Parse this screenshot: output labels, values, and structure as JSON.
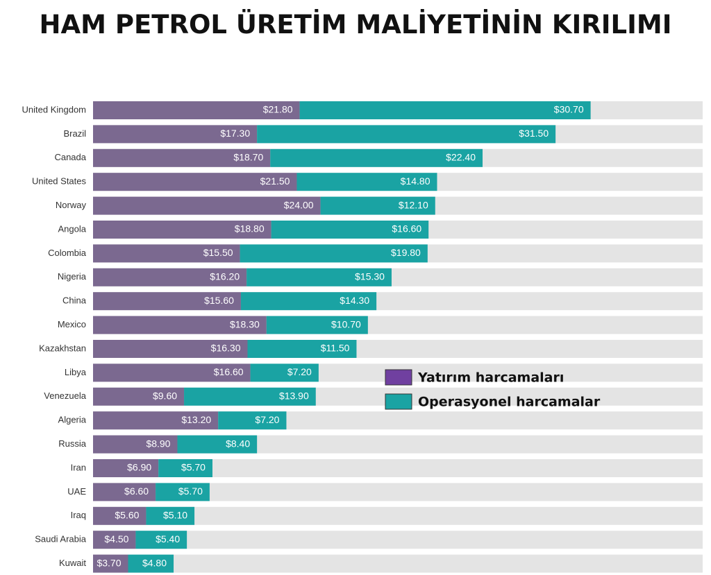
{
  "chart_data": {
    "type": "bar",
    "orientation": "horizontal",
    "stacked": true,
    "title": "HAM PETROL ÜRETİM MALİYETİNİN KIRILIMI",
    "categories": [
      "United Kingdom",
      "Brazil",
      "Canada",
      "United States",
      "Norway",
      "Angola",
      "Colombia",
      "Nigeria",
      "China",
      "Mexico",
      "Kazakhstan",
      "Libya",
      "Venezuela",
      "Algeria",
      "Russia",
      "Iran",
      "UAE",
      "Iraq",
      "Saudi Arabia",
      "Kuwait"
    ],
    "series": [
      {
        "name": "Yatırım harcamaları",
        "color": "#7b6990",
        "values": [
          21.8,
          17.3,
          18.7,
          21.5,
          24.0,
          18.8,
          15.5,
          16.2,
          15.6,
          18.3,
          16.3,
          16.6,
          9.6,
          13.2,
          8.9,
          6.9,
          6.6,
          5.6,
          4.5,
          3.7
        ],
        "labels": [
          "$21.80",
          "$17.30",
          "$18.70",
          "$21.50",
          "$24.00",
          "$18.80",
          "$15.50",
          "$16.20",
          "$15.60",
          "$18.30",
          "$16.30",
          "$16.60",
          "$9.60",
          "$13.20",
          "$8.90",
          "$6.90",
          "$6.60",
          "$5.60",
          "$4.50",
          "$3.70"
        ]
      },
      {
        "name": "Operasyonel harcamalar",
        "color": "#1aa3a3",
        "values": [
          30.7,
          31.5,
          22.4,
          14.8,
          12.1,
          16.6,
          19.8,
          15.3,
          14.3,
          10.7,
          11.5,
          7.2,
          13.9,
          7.2,
          8.4,
          5.7,
          5.7,
          5.1,
          5.4,
          4.8
        ],
        "labels": [
          "$30.70",
          "$31.50",
          "$22.40",
          "$14.80",
          "$12.10",
          "$16.60",
          "$19.80",
          "$15.30",
          "$14.30",
          "$10.70",
          "$11.50",
          "$7.20",
          "$13.90",
          "$7.20",
          "$8.40",
          "$5.70",
          "$5.70",
          "$5.10",
          "$5.40",
          "$4.80"
        ]
      }
    ],
    "xlim": [
      0,
      64
    ],
    "grid": false,
    "legend_position": "right",
    "background_track_color": "#e4e4e4",
    "legend_colors": {
      "capex": "#7040a0",
      "opex": "#1aa3a3"
    }
  }
}
